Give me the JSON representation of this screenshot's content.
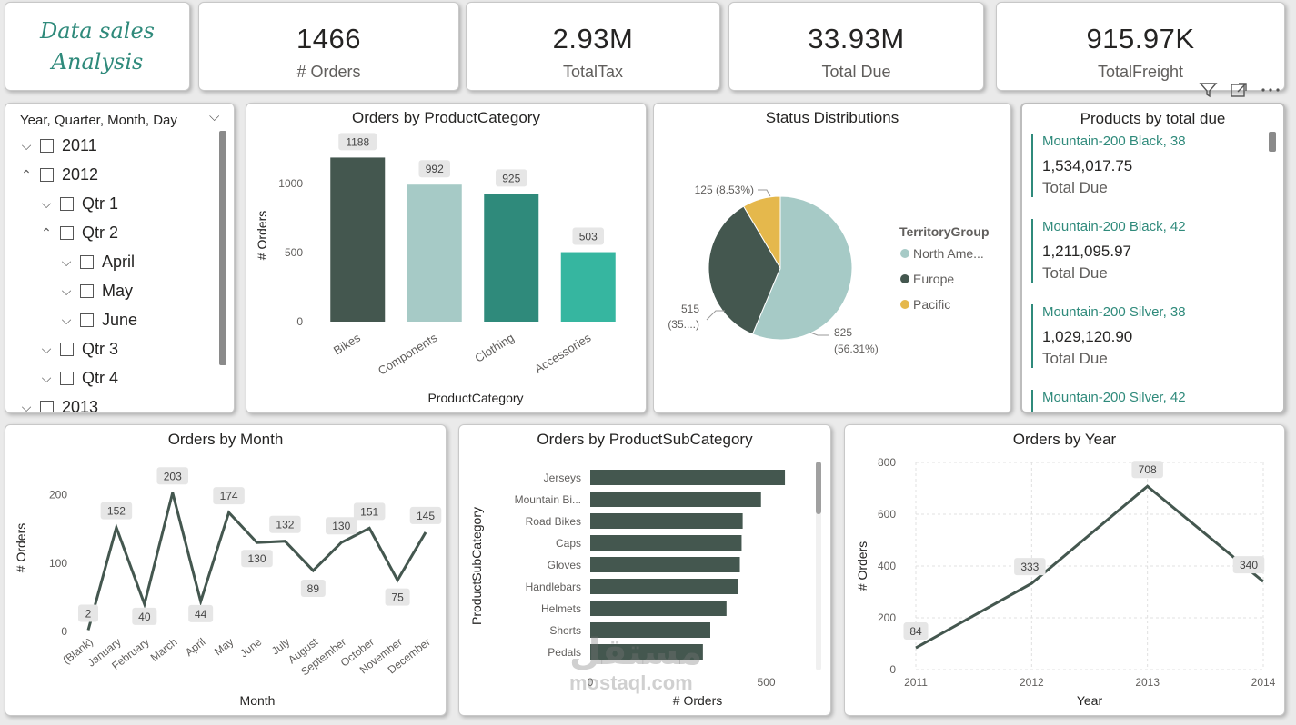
{
  "header_title": {
    "line1": "Data sales",
    "line2": "Analysis"
  },
  "kpis": [
    {
      "value": "1466",
      "label": "# Orders"
    },
    {
      "value": "2.93M",
      "label": "TotalTax"
    },
    {
      "value": "33.93M",
      "label": "Total Due"
    },
    {
      "value": "915.97K",
      "label": "TotalFreight"
    }
  ],
  "visual_header_icons": [
    "filter-icon",
    "focus-mode-icon",
    "more-options-icon"
  ],
  "slicer": {
    "header": "Year, Quarter, Month, Day",
    "items": [
      {
        "label": "2011",
        "level": 0,
        "expander": "⌵"
      },
      {
        "label": "2012",
        "level": 0,
        "expander": "⌃"
      },
      {
        "label": "Qtr 1",
        "level": 1,
        "expander": "⌵"
      },
      {
        "label": "Qtr 2",
        "level": 1,
        "expander": "⌃"
      },
      {
        "label": "April",
        "level": 2,
        "expander": "⌵"
      },
      {
        "label": "May",
        "level": 2,
        "expander": "⌵"
      },
      {
        "label": "June",
        "level": 2,
        "expander": "⌵"
      },
      {
        "label": "Qtr 3",
        "level": 1,
        "expander": "⌵"
      },
      {
        "label": "Qtr 4",
        "level": 1,
        "expander": "⌵"
      },
      {
        "label": "2013",
        "level": 0,
        "expander": "⌵"
      }
    ]
  },
  "products_card": {
    "title": "Products by total due",
    "items": [
      {
        "name": "Mountain-200 Black, 38",
        "value": "1,534,017.75",
        "label": "Total Due"
      },
      {
        "name": "Mountain-200 Black, 42",
        "value": "1,211,095.97",
        "label": "Total Due"
      },
      {
        "name": "Mountain-200 Silver, 38",
        "value": "1,029,120.90",
        "label": "Total Due"
      },
      {
        "name": "Mountain-200 Silver, 42",
        "value": "",
        "label": ""
      }
    ]
  },
  "colors": {
    "dark": "#44574f",
    "light": "#a6cac6",
    "teal": "#2f8a7b",
    "mint": "#36b6a0",
    "gold": "#e5b84c",
    "grid": "#e0e0e0"
  },
  "watermark": {
    "arabic": "مستقل",
    "latin": "mostaql.com"
  },
  "chart_data": [
    {
      "id": "orders_by_category",
      "type": "bar",
      "title": "Orders by ProductCategory",
      "xlabel": "ProductCategory",
      "ylabel": "# Orders",
      "categories": [
        "Bikes",
        "Components",
        "Clothing",
        "Accessories"
      ],
      "values": [
        1188,
        992,
        925,
        503
      ],
      "value_labels": [
        "1188",
        "992",
        "925",
        "503"
      ],
      "yticks": [
        0,
        500,
        1000
      ],
      "ylim": [
        0,
        1250
      ]
    },
    {
      "id": "status_distribution",
      "type": "pie",
      "title": "Status Distributions",
      "legend_title": "TerritoryGroup",
      "labels": [
        "North Ame...",
        "Europe",
        "Pacific"
      ],
      "values": [
        825,
        515,
        125
      ],
      "slice_labels": [
        [
          "825",
          "(56.31%)"
        ],
        [
          "515",
          "(35....)"
        ],
        [
          "125 (8.53%)"
        ]
      ],
      "legend": "right"
    },
    {
      "id": "orders_by_month",
      "type": "line",
      "title": "Orders by Month",
      "xlabel": "Month",
      "ylabel": "# Orders",
      "categories": [
        "(Blank)",
        "January",
        "February",
        "March",
        "April",
        "May",
        "June",
        "July",
        "August",
        "September",
        "October",
        "November",
        "December"
      ],
      "values": [
        2,
        152,
        40,
        203,
        44,
        174,
        130,
        132,
        89,
        130,
        151,
        75,
        145
      ],
      "value_labels": [
        "2",
        "152",
        "40",
        "203",
        "44",
        "174",
        "130",
        "132",
        "89",
        "130",
        "151",
        "75",
        "145"
      ],
      "yticks": [
        0,
        100,
        200
      ],
      "ylim": [
        0,
        230
      ]
    },
    {
      "id": "orders_by_subcategory",
      "type": "bar",
      "orientation": "horizontal",
      "title": "Orders by ProductSubCategory",
      "xlabel": "# Orders",
      "ylabel": "ProductSubCategory",
      "categories": [
        "Jerseys",
        "Mountain Bi...",
        "Road Bikes",
        "Caps",
        "Gloves",
        "Handlebars",
        "Helmets",
        "Shorts",
        "Pedals"
      ],
      "values": [
        553,
        485,
        433,
        430,
        425,
        420,
        387,
        341,
        320
      ],
      "xticks": [
        0,
        500
      ],
      "xlim": [
        0,
        620
      ]
    },
    {
      "id": "orders_by_year",
      "type": "line",
      "title": "Orders by Year",
      "xlabel": "Year",
      "ylabel": "# Orders",
      "x": [
        "2011",
        "2012",
        "2013",
        "2014"
      ],
      "values": [
        84,
        333,
        708,
        340
      ],
      "value_labels": [
        "84",
        "333",
        "708",
        "340"
      ],
      "yticks": [
        0,
        200,
        400,
        600,
        800
      ],
      "ylim": [
        0,
        800
      ],
      "grid": true
    }
  ]
}
